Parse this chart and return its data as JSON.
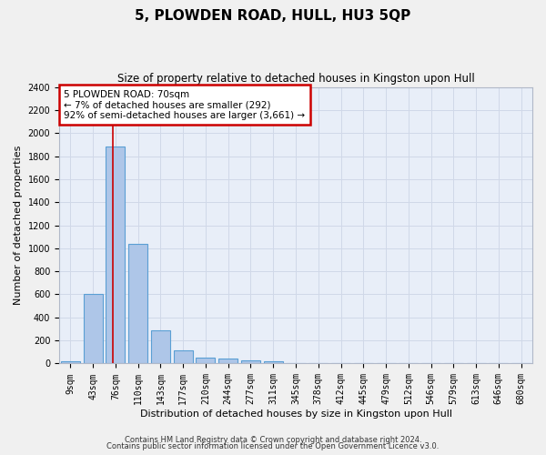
{
  "title": "5, PLOWDEN ROAD, HULL, HU3 5QP",
  "subtitle": "Size of property relative to detached houses in Kingston upon Hull",
  "xlabel": "Distribution of detached houses by size in Kingston upon Hull",
  "ylabel": "Number of detached properties",
  "categories": [
    "9sqm",
    "43sqm",
    "76sqm",
    "110sqm",
    "143sqm",
    "177sqm",
    "210sqm",
    "244sqm",
    "277sqm",
    "311sqm",
    "345sqm",
    "378sqm",
    "412sqm",
    "445sqm",
    "479sqm",
    "512sqm",
    "546sqm",
    "579sqm",
    "613sqm",
    "646sqm",
    "680sqm"
  ],
  "values": [
    20,
    600,
    1880,
    1040,
    290,
    115,
    50,
    45,
    30,
    20,
    0,
    0,
    0,
    0,
    0,
    0,
    0,
    0,
    0,
    0,
    0
  ],
  "bar_color": "#aec6e8",
  "bar_edge_color": "#5a9fd4",
  "red_line_x": 1.87,
  "annotation_text": "5 PLOWDEN ROAD: 70sqm\n← 7% of detached houses are smaller (292)\n92% of semi-detached houses are larger (3,661) →",
  "annotation_box_color": "#ffffff",
  "annotation_box_edge_color": "#cc0000",
  "grid_color": "#d0d8e8",
  "background_color": "#e8eef8",
  "fig_background": "#f0f0f0",
  "ylim": [
    0,
    2400
  ],
  "yticks": [
    0,
    200,
    400,
    600,
    800,
    1000,
    1200,
    1400,
    1600,
    1800,
    2000,
    2200,
    2400
  ],
  "footer_line1": "Contains HM Land Registry data © Crown copyright and database right 2024.",
  "footer_line2": "Contains public sector information licensed under the Open Government Licence v3.0.",
  "red_line_color": "#cc0000",
  "title_fontsize": 11,
  "subtitle_fontsize": 8.5,
  "tick_fontsize": 7,
  "ylabel_fontsize": 8,
  "xlabel_fontsize": 8,
  "footer_fontsize": 6,
  "annotation_fontsize": 7.5
}
